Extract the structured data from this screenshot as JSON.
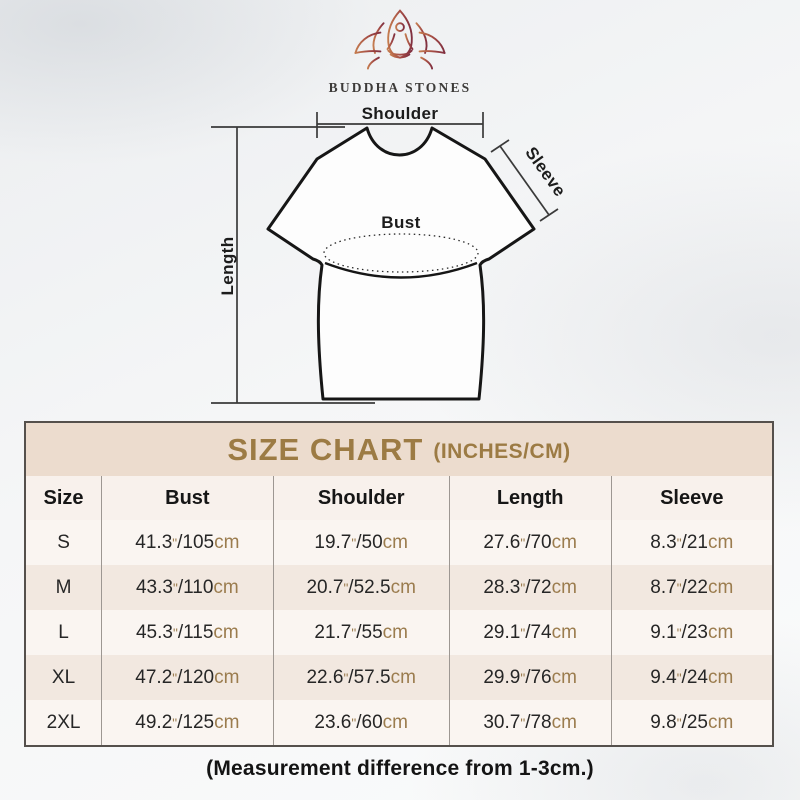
{
  "brand": {
    "name": "BUDDHA STONES"
  },
  "diagram": {
    "shoulder_label": "Shoulder",
    "sleeve_label": "Sleeve",
    "bust_label": "Bust",
    "length_label": "Length"
  },
  "table": {
    "title": "SIZE CHART",
    "subtitle": "(INCHES/CM)",
    "columns": [
      "Size",
      "Bust",
      "Shoulder",
      "Length",
      "Sleeve"
    ],
    "unit_inch_mark": "\"",
    "separator": "/",
    "unit_cm": "cm",
    "rows": [
      {
        "size": "S",
        "measurements": [
          {
            "in": "41.3",
            "cm": "105"
          },
          {
            "in": "19.7",
            "cm": "50"
          },
          {
            "in": "27.6",
            "cm": "70"
          },
          {
            "in": "8.3",
            "cm": "21"
          }
        ]
      },
      {
        "size": "M",
        "measurements": [
          {
            "in": "43.3",
            "cm": "110"
          },
          {
            "in": "20.7",
            "cm": "52.5"
          },
          {
            "in": "28.3",
            "cm": "72"
          },
          {
            "in": "8.7",
            "cm": "22"
          }
        ]
      },
      {
        "size": "L",
        "measurements": [
          {
            "in": "45.3",
            "cm": "115"
          },
          {
            "in": "21.7",
            "cm": "55"
          },
          {
            "in": "29.1",
            "cm": "74"
          },
          {
            "in": "9.1",
            "cm": "23"
          }
        ]
      },
      {
        "size": "XL",
        "measurements": [
          {
            "in": "47.2",
            "cm": "120"
          },
          {
            "in": "22.6",
            "cm": "57.5"
          },
          {
            "in": "29.9",
            "cm": "76"
          },
          {
            "in": "9.4",
            "cm": "24"
          }
        ]
      },
      {
        "size": "2XL",
        "measurements": [
          {
            "in": "49.2",
            "cm": "125"
          },
          {
            "in": "23.6",
            "cm": "60"
          },
          {
            "in": "30.7",
            "cm": "78"
          },
          {
            "in": "9.8",
            "cm": "25"
          }
        ]
      }
    ]
  },
  "footnote": "(Measurement difference from 1-3cm.)",
  "colors": {
    "accent_gold": "#9c7b44",
    "band_background": "#ecdcce",
    "unit_brown": "#9b7c4e",
    "row_alt_background": "#f2e8e0",
    "logo_gradient_start": "#c47b4e",
    "logo_gradient_end": "#803040"
  }
}
